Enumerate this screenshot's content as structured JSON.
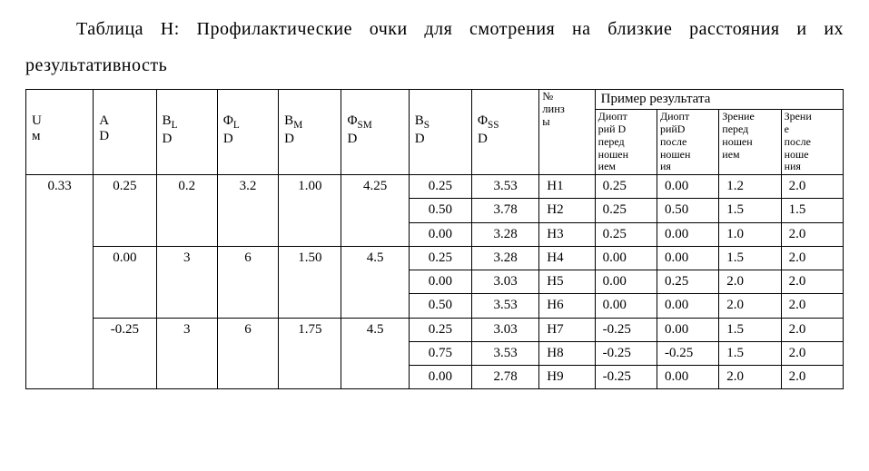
{
  "caption": {
    "line1_a": "Таблица H: Профилактические очки для смотрения на близкие расстояния и",
    "line1_b": "их",
    "line2": "результативность"
  },
  "headers": {
    "main": [
      "U<br>м",
      "A<br>D",
      "B<span class='sub'>L</span><br>D",
      "Φ<span class='sub'>L</span><br>D",
      "B<span class='sub'>M</span><br>D",
      "Φ<span class='sub'>SM</span><br>D",
      "B<span class='sub'>S</span><br>D",
      "Φ<span class='sub'>SS</span><br>D",
      "№<br>линз<br>ы"
    ],
    "result_group": "Пример результата",
    "result_cols": [
      "Диопт<br>рий D<br>перед<br>ношен<br>ием",
      "Диопт<br>рийD<br>после<br>ношен<br>ия",
      "Зрение<br>перед<br>ношен<br>ием",
      "Зрени<br>е<br>после<br>ноше<br>ния"
    ]
  },
  "colwidths": [
    "7.5%",
    "7%",
    "6.8%",
    "6.8%",
    "7%",
    "7.5%",
    "7%",
    "7.5%",
    "6.2%",
    "6.9%",
    "6.9%",
    "6.9%",
    "6.9%"
  ],
  "rows": [
    {
      "u": "0.33",
      "a_groups": [
        {
          "a": "0.25",
          "bl": "0.2",
          "phl": "3.2",
          "bm": "1.00",
          "phsm": "4.25",
          "subs": [
            {
              "bs": "0.25",
              "phss": "3.53",
              "lens": "H1",
              "d_before": "0.25",
              "d_after": "0.00",
              "v_before": "1.2",
              "v_after": "2.0"
            },
            {
              "bs": "0.50",
              "phss": "3.78",
              "lens": "H2",
              "d_before": "0.25",
              "d_after": "0.50",
              "v_before": "1.5",
              "v_after": "1.5"
            },
            {
              "bs": "0.00",
              "phss": "3.28",
              "lens": "H3",
              "d_before": "0.25",
              "d_after": "0.00",
              "v_before": "1.0",
              "v_after": "2.0"
            }
          ]
        },
        {
          "a": "0.00",
          "bl": "3",
          "phl": "6",
          "bm": "1.50",
          "phsm": "4.5",
          "subs": [
            {
              "bs": "0.25",
              "phss": "3.28",
              "lens": "H4",
              "d_before": "0.00",
              "d_after": "0.00",
              "v_before": "1.5",
              "v_after": "2.0"
            },
            {
              "bs": "0.00",
              "phss": "3.03",
              "lens": "H5",
              "d_before": "0.00",
              "d_after": "0.25",
              "v_before": "2.0",
              "v_after": "2.0"
            },
            {
              "bs": "0.50",
              "phss": "3.53",
              "lens": "H6",
              "d_before": "0.00",
              "d_after": "0.00",
              "v_before": "2.0",
              "v_after": "2.0"
            }
          ]
        },
        {
          "a": "-0.25",
          "bl": "3",
          "phl": "6",
          "bm": "1.75",
          "phsm": "4.5",
          "subs": [
            {
              "bs": "0.25",
              "phss": "3.03",
              "lens": "H7",
              "d_before": "-0.25",
              "d_after": "0.00",
              "v_before": "1.5",
              "v_after": "2.0"
            },
            {
              "bs": "0.75",
              "phss": "3.53",
              "lens": "H8",
              "d_before": "-0.25",
              "d_after": "-0.25",
              "v_before": "1.5",
              "v_after": "2.0"
            },
            {
              "bs": "0.00",
              "phss": "2.78",
              "lens": "H9",
              "d_before": "-0.25",
              "d_after": "0.00",
              "v_before": "2.0",
              "v_after": "2.0"
            }
          ]
        }
      ]
    }
  ]
}
